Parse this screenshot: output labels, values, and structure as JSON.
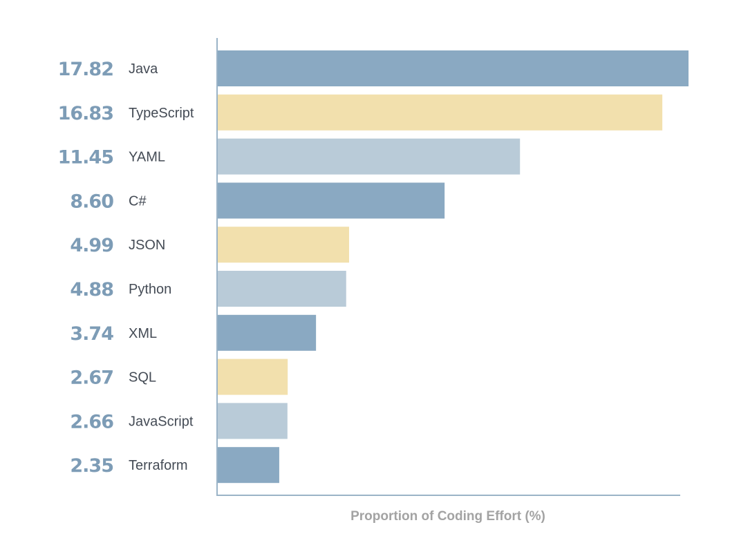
{
  "chart_data": {
    "type": "bar",
    "orientation": "horizontal",
    "title": "",
    "xlabel": "Proportion of Coding Effort (%)",
    "ylabel": "",
    "xlim": [
      0,
      17.82
    ],
    "grid": false,
    "categories": [
      "Java",
      "TypeScript",
      "YAML",
      "C#",
      "JSON",
      "Python",
      "XML",
      "SQL",
      "JavaScript",
      "Terraform"
    ],
    "values": [
      17.82,
      16.83,
      11.45,
      8.6,
      4.99,
      4.88,
      3.74,
      2.67,
      2.66,
      2.35
    ],
    "value_labels": [
      "17.82",
      "16.83",
      "11.45",
      "8.60",
      "4.99",
      "4.88",
      "3.74",
      "2.67",
      "2.66",
      "2.35"
    ],
    "colors": [
      "#8aa9c2",
      "#f2e0ad",
      "#b9cbd8"
    ],
    "value_label_color": "#7d9cb6",
    "axis_color": "#9ab3c7"
  }
}
